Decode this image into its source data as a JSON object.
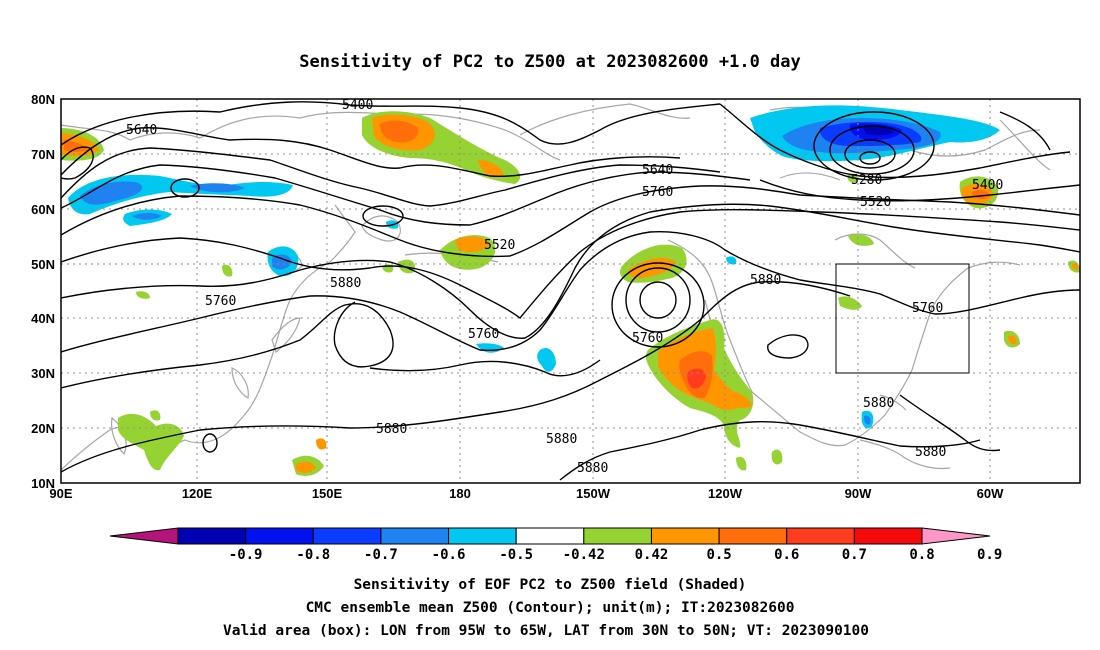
{
  "title": "Sensitivity of PC2 to Z500 at 2023082600 +1.0 day",
  "map": {
    "lat_labels": [
      "80N",
      "70N",
      "60N",
      "50N",
      "40N",
      "30N",
      "20N",
      "10N"
    ],
    "lon_labels": [
      "90E",
      "120E",
      "150E",
      "180",
      "150W",
      "120W",
      "90W",
      "60W"
    ],
    "projection": "cylindrical equidistant",
    "grid": "dotted",
    "lon_range": [
      "90E",
      "45W"
    ],
    "lat_range": [
      "10N",
      "80N"
    ],
    "valid_box": {
      "lon": [
        "95W",
        "65W"
      ],
      "lat": [
        "30N",
        "50N"
      ]
    }
  },
  "contour_labels": [
    "5400",
    "5640",
    "5640",
    "5760",
    "5520",
    "5280",
    "5520",
    "5400",
    "5880",
    "5880",
    "5760",
    "5760",
    "5760",
    "5760",
    "5880",
    "5880",
    "5880",
    "5880",
    "5880"
  ],
  "colorbar": {
    "labels": [
      "-0.9",
      "-0.8",
      "-0.7",
      "-0.6",
      "-0.5",
      "-0.42",
      "0.42",
      "0.5",
      "0.6",
      "0.7",
      "0.8",
      "0.9"
    ],
    "colors": [
      "#0000b4",
      "#0010f0",
      "#0a3cff",
      "#1e82f0",
      "#00c8f0",
      "#ffffff",
      "#96d232",
      "#ff9600",
      "#ff6e0a",
      "#ff3c1e",
      "#f50a0a"
    ],
    "low_extension_color": "#b4147a",
    "high_extension_color": "#ff96c8"
  },
  "footer": {
    "line1": "Sensitivity of EOF PC2 to Z500 field (Shaded)",
    "line2": "CMC ensemble mean Z500 (Contour); unit(m); IT:2023082600",
    "line3": "Valid area (box): LON from 95W to 65W, LAT from 30N to 50N; VT: 2023090100"
  }
}
